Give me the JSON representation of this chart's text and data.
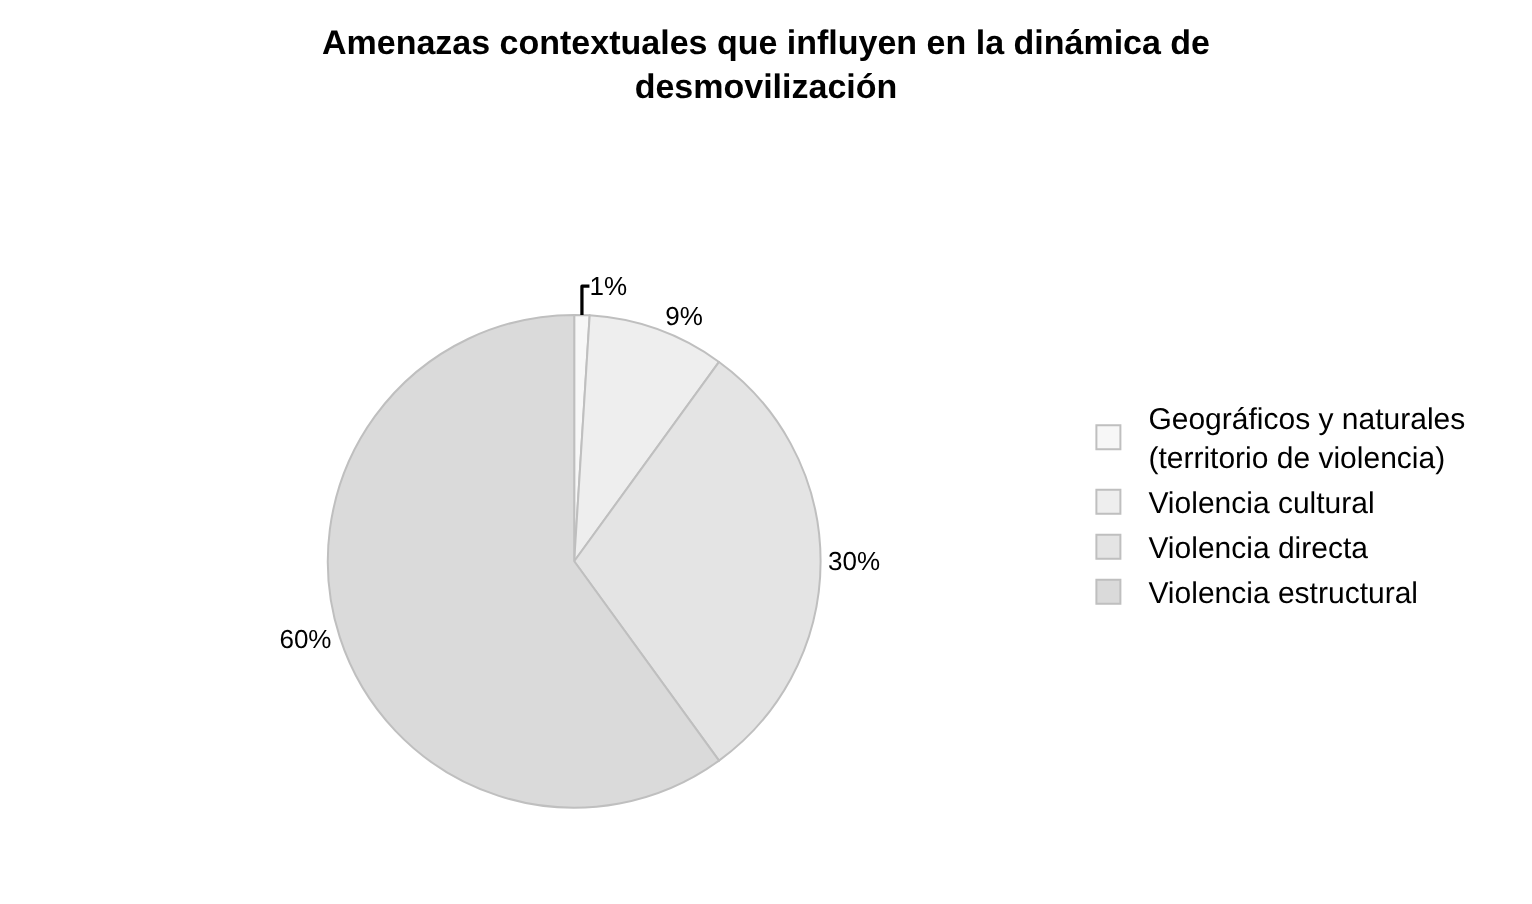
{
  "chart_data": {
    "type": "pie",
    "title": "Amenazas contextuales que influyen en la dinámica de\ndesmovilización",
    "categories": [
      "Geográficos y naturales\n(territorio de violencia)",
      "Violencia cultural",
      "Violencia directa",
      "Violencia estructural"
    ],
    "values": [
      1,
      9,
      30,
      60
    ],
    "value_labels": [
      "1%",
      "9%",
      "30%",
      "60%"
    ],
    "colors": [
      "#f7f7f7",
      "#eeeeee",
      "#e4e4e4",
      "#dadada"
    ],
    "legend": "right"
  }
}
